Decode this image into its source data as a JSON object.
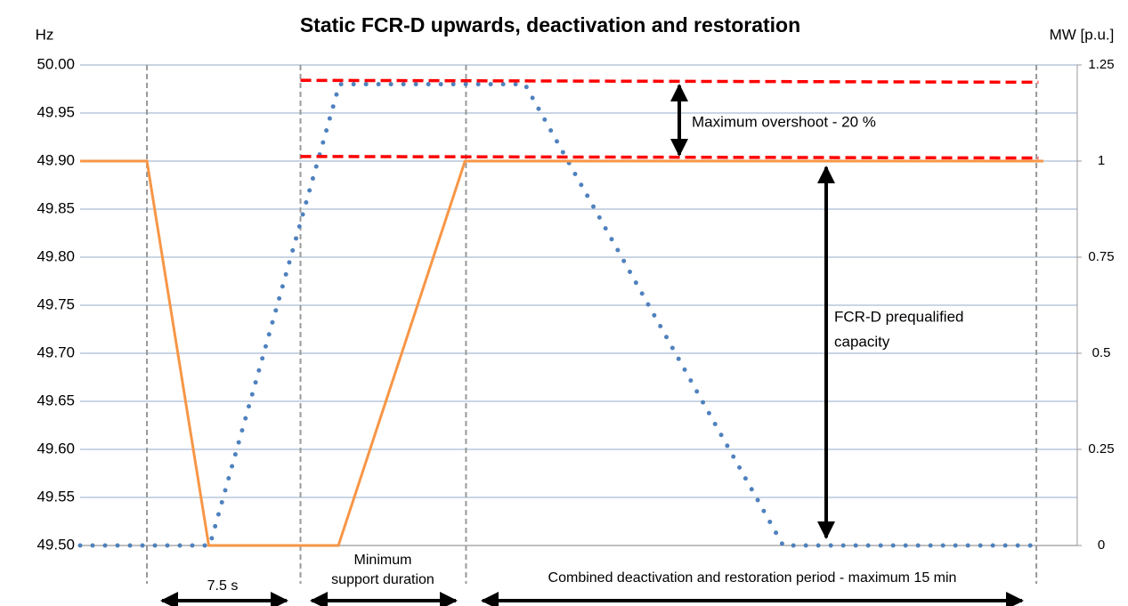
{
  "chart_data": {
    "type": "line",
    "title": "Static FCR-D upwards, deactivation and restoration",
    "y_label": "Hz",
    "y2_label": "MW [p.u.]",
    "xlim": [
      0,
      100
    ],
    "ylim": [
      49.5,
      50.0
    ],
    "yticks": [
      {
        "value": 49.5,
        "label": "49.50"
      },
      {
        "value": 49.55,
        "label": "49.55"
      },
      {
        "value": 49.6,
        "label": "49.60"
      },
      {
        "value": 49.65,
        "label": "49.65"
      },
      {
        "value": 49.7,
        "label": "49.70"
      },
      {
        "value": 49.75,
        "label": "49.75"
      },
      {
        "value": 49.8,
        "label": "49.80"
      },
      {
        "value": 49.85,
        "label": "49.85"
      },
      {
        "value": 49.9,
        "label": "49.90"
      },
      {
        "value": 49.95,
        "label": "49.95"
      },
      {
        "value": 50.0,
        "label": "50.00"
      }
    ],
    "y2lim": [
      0,
      1.25
    ],
    "y2ticks": [
      0,
      0.25,
      0.5,
      0.75,
      1,
      1.25
    ],
    "grid": true,
    "vlines": [
      6.7,
      22.1,
      38.7,
      95.9
    ],
    "series": [
      {
        "color": "#4f81bd",
        "style": "dotted",
        "x": [
          0,
          13,
          26,
          44.6,
          70.5,
          95.5
        ],
        "values": [
          49.5,
          49.5,
          49.98,
          49.98,
          49.5,
          49.5
        ]
      },
      {
        "color": "#f79646",
        "style": "solid",
        "axis": "y2",
        "x": [
          0,
          6.7,
          12.9,
          25.9,
          38.6,
          96.6
        ],
        "values": [
          1,
          1,
          0,
          0,
          1,
          1
        ]
      },
      {
        "color": "#ff0000",
        "style": "dashed",
        "axis": "y2",
        "x": [
          22.1,
          96.1
        ],
        "values": [
          1.21,
          1.205
        ]
      },
      {
        "color": "#ff0000",
        "style": "dashed",
        "axis": "y2",
        "x": [
          22.1,
          96.1
        ],
        "values": [
          1.012,
          1.008
        ]
      }
    ],
    "annotations": [
      {
        "lines": [
          "Maximum overshoot - 20 %"
        ]
      },
      {
        "lines": [
          "FCR-D prequalified",
          "capacity"
        ]
      },
      {
        "lines": [
          "7.5 s"
        ]
      },
      {
        "lines": [
          "Minimum",
          "support duration"
        ]
      },
      {
        "lines": [
          "Combined deactivation and restoration period - maximum 15 min"
        ]
      }
    ]
  }
}
